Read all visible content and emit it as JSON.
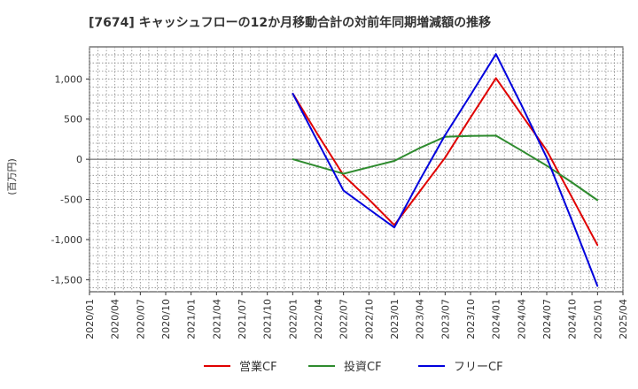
{
  "chart_data": {
    "type": "line",
    "title": "[7674]  キャッシュフローの12か月移動合計の対前年同期増減額の推移",
    "ylabel": "(百万円)",
    "xlabel": "",
    "ylim": [
      -1650,
      1400
    ],
    "yticks": [
      1000,
      500,
      0,
      -500,
      -1000,
      -1500
    ],
    "ytick_labels": [
      "1,000",
      "500",
      "0",
      "-500",
      "-1,000",
      "-1,500"
    ],
    "categories": [
      "2020/01",
      "2020/04",
      "2020/07",
      "2020/10",
      "2021/01",
      "2021/04",
      "2021/07",
      "2021/10",
      "2022/01",
      "2022/04",
      "2022/07",
      "2022/10",
      "2023/01",
      "2023/04",
      "2023/07",
      "2023/10",
      "2024/01",
      "2024/04",
      "2024/07",
      "2024/10",
      "2025/01",
      "2025/04"
    ],
    "series": [
      {
        "name": "営業CF",
        "color": "#e00000",
        "points": [
          [
            "2022/01",
            820
          ],
          [
            "2022/04",
            300
          ],
          [
            "2022/07",
            -200
          ],
          [
            "2022/10",
            -500
          ],
          [
            "2023/01",
            -820
          ],
          [
            "2023/04",
            -400
          ],
          [
            "2023/07",
            20
          ],
          [
            "2023/10",
            520
          ],
          [
            "2024/01",
            1010
          ],
          [
            "2024/04",
            560
          ],
          [
            "2024/07",
            110
          ],
          [
            "2024/10",
            -480
          ],
          [
            "2025/01",
            -1070
          ]
        ]
      },
      {
        "name": "投資CF",
        "color": "#2e8b2e",
        "points": [
          [
            "2022/01",
            0
          ],
          [
            "2022/04",
            -90
          ],
          [
            "2022/07",
            -180
          ],
          [
            "2022/10",
            -100
          ],
          [
            "2023/01",
            -20
          ],
          [
            "2023/04",
            140
          ],
          [
            "2023/07",
            280
          ],
          [
            "2023/10",
            290
          ],
          [
            "2024/01",
            295
          ],
          [
            "2024/04",
            110
          ],
          [
            "2024/07",
            -80
          ],
          [
            "2024/10",
            -290
          ],
          [
            "2025/01",
            -510
          ]
        ]
      },
      {
        "name": "フリーCF",
        "color": "#0000dd",
        "points": [
          [
            "2022/01",
            820
          ],
          [
            "2022/04",
            210
          ],
          [
            "2022/07",
            -390
          ],
          [
            "2022/10",
            -620
          ],
          [
            "2023/01",
            -850
          ],
          [
            "2023/04",
            -260
          ],
          [
            "2023/07",
            300
          ],
          [
            "2023/10",
            800
          ],
          [
            "2024/01",
            1310
          ],
          [
            "2024/04",
            680
          ],
          [
            "2024/07",
            20
          ],
          [
            "2024/10",
            -770
          ],
          [
            "2025/01",
            -1580
          ]
        ]
      }
    ],
    "legend_position": "bottom"
  }
}
